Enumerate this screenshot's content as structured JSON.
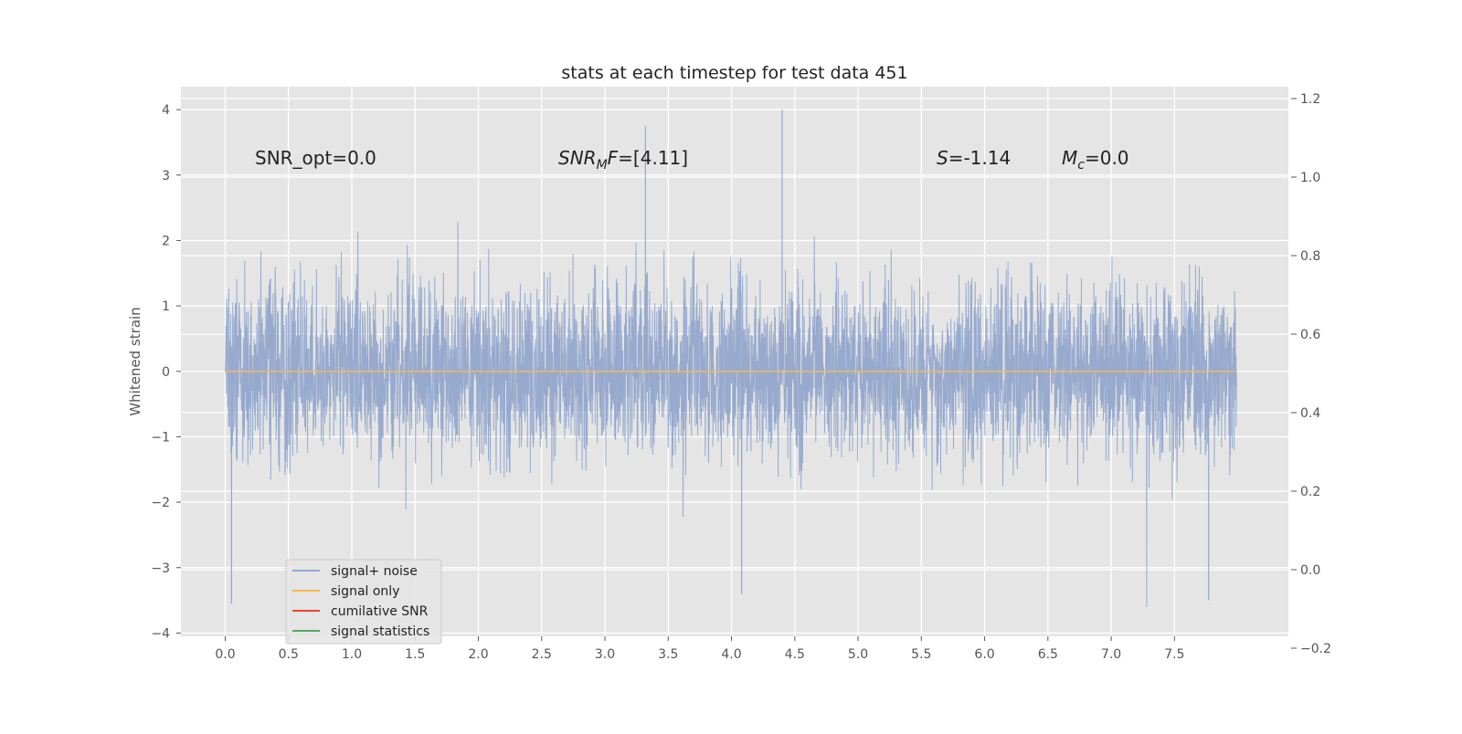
{
  "chart_data": {
    "type": "line",
    "title": "stats at each timestep for test data 451",
    "xlabel": "",
    "ylabel": "Whitened strain",
    "xlim": [
      -0.35,
      8.4
    ],
    "ylim": [
      -4.05,
      4.35
    ],
    "y2lim": [
      -0.2,
      1.2
    ],
    "grid": true,
    "x_ticks": [
      0.0,
      0.5,
      1.0,
      1.5,
      2.0,
      2.5,
      3.0,
      3.5,
      4.0,
      4.5,
      5.0,
      5.5,
      6.0,
      6.5,
      7.0,
      7.5
    ],
    "x_tick_labels": [
      "0.0",
      "0.5",
      "1.0",
      "1.5",
      "2.0",
      "2.5",
      "3.0",
      "3.5",
      "4.0",
      "4.5",
      "5.0",
      "5.5",
      "6.0",
      "6.5",
      "7.0",
      "7.5"
    ],
    "y_ticks": [
      -4,
      -3,
      -2,
      -1,
      0,
      1,
      2,
      3,
      4
    ],
    "y_tick_labels": [
      "−4",
      "−3",
      "−2",
      "−1",
      "0",
      "1",
      "2",
      "3",
      "4"
    ],
    "y2_ticks": [
      -0.2,
      0.0,
      0.2,
      0.4,
      0.6,
      0.8,
      1.0,
      1.2
    ],
    "y2_tick_labels": [
      "−0.2",
      "0.0",
      "0.2",
      "0.4",
      "0.6",
      "0.8",
      "1.0",
      "1.2"
    ],
    "series": [
      {
        "name": "signal+ noise",
        "color": "#92a7cc",
        "description_values": {
          "x_range": [
            0.0,
            7.99
          ],
          "typical_abs_max": 2.5,
          "peak_max": 4.0,
          "peak_min": -3.6
        }
      },
      {
        "name": "signal only",
        "color": "#f0b85a",
        "values_constant": 0.0,
        "x_range": [
          0.0,
          7.99
        ]
      },
      {
        "name": "cumilative SNR",
        "color": "#e24a33"
      },
      {
        "name": "signal statistics",
        "color": "#55a868"
      }
    ],
    "annotations": {
      "snr_opt": "SNR_opt=0.0",
      "snr_mf_main": "SNR",
      "snr_mf_sub": "M",
      "snr_mf_tail_italic": "F",
      "snr_mf_value": "=[4.11]",
      "s_symbol": "S",
      "s_value": "=-1.14",
      "mc_main": "M",
      "mc_sub": "c",
      "mc_value": "=0.0"
    },
    "legend_position": "lower-left"
  },
  "colors": {
    "plot_bg": "#e5e5e5",
    "grid": "#ffffff",
    "noise": "#92a7cc",
    "signal": "#f0b85a",
    "snr": "#e24a33",
    "stats": "#55a868"
  }
}
